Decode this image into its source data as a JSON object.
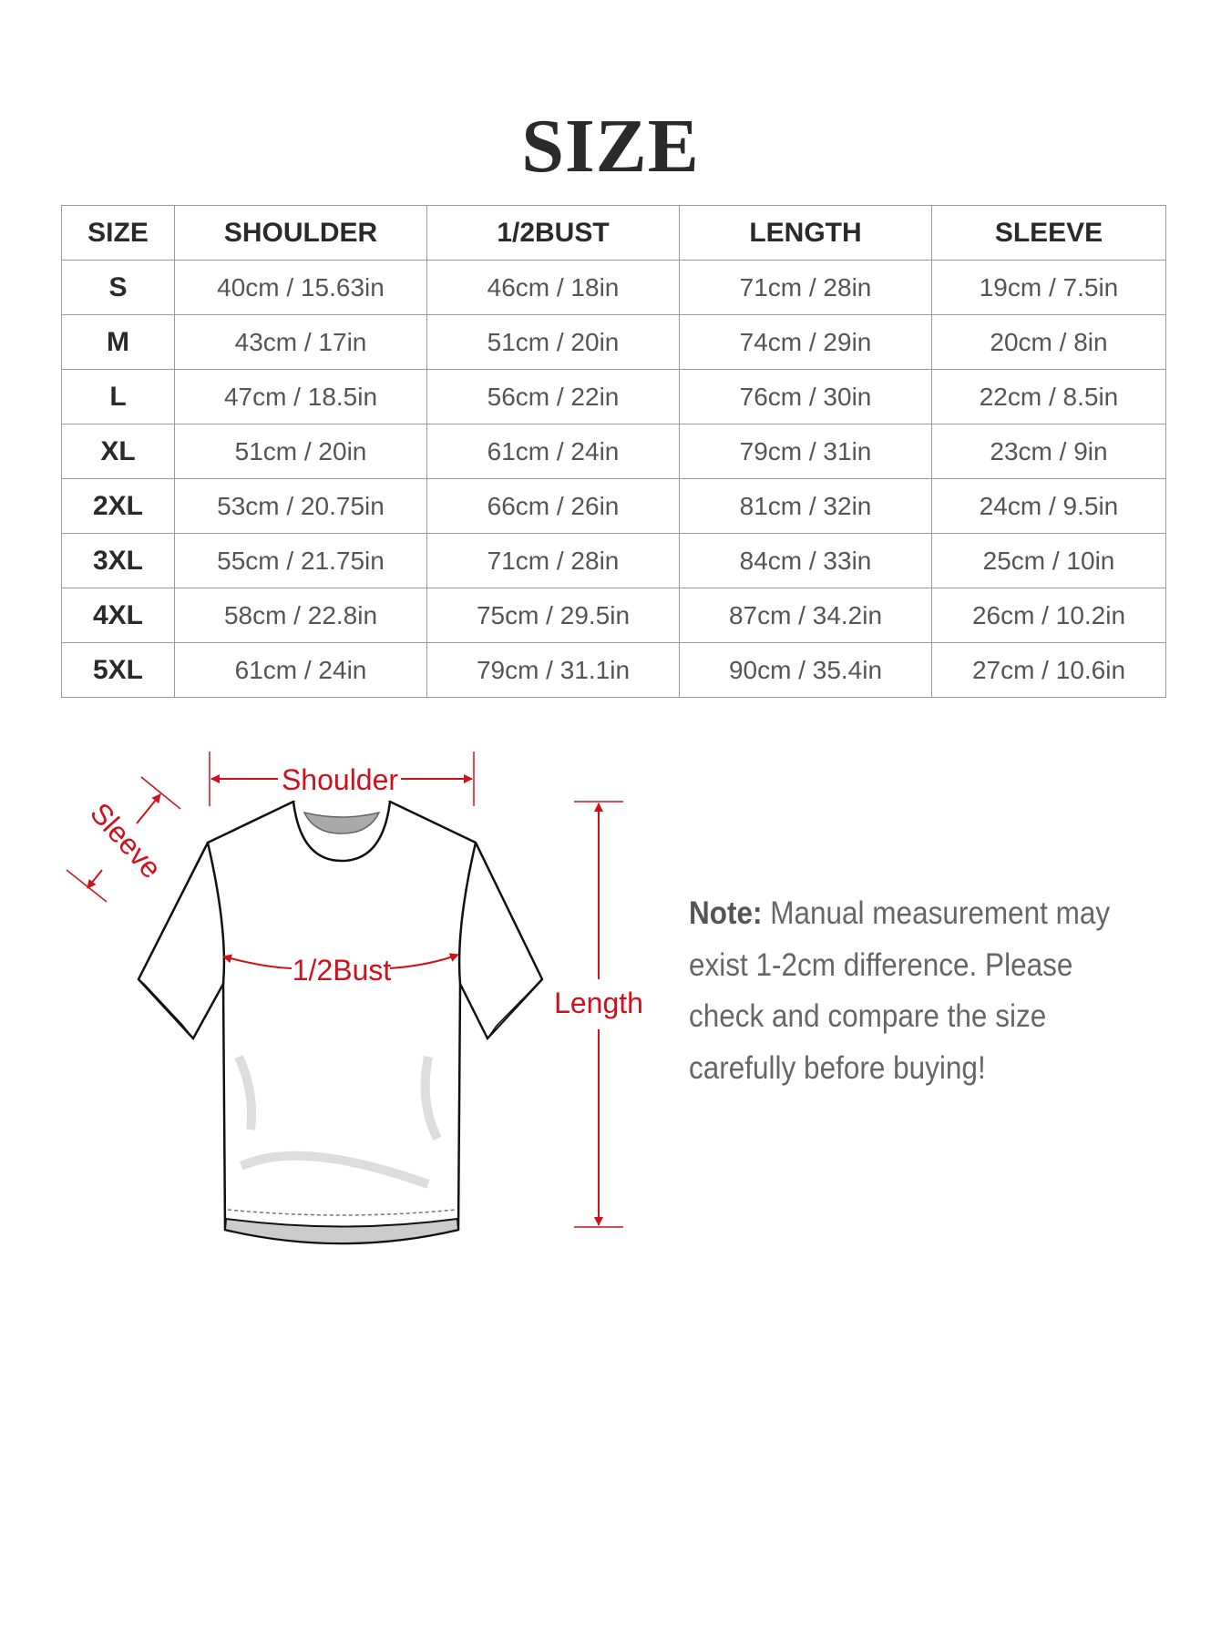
{
  "title": "SIZE",
  "table": {
    "headers": [
      "SIZE",
      "SHOULDER",
      "1/2BUST",
      "LENGTH",
      "SLEEVE"
    ],
    "rows": [
      [
        "S",
        "40cm / 15.63in",
        "46cm / 18in",
        "71cm / 28in",
        "19cm / 7.5in"
      ],
      [
        "M",
        "43cm / 17in",
        "51cm / 20in",
        "74cm / 29in",
        "20cm / 8in"
      ],
      [
        "L",
        "47cm / 18.5in",
        "56cm / 22in",
        "76cm / 30in",
        "22cm / 8.5in"
      ],
      [
        "XL",
        "51cm / 20in",
        "61cm / 24in",
        "79cm / 31in",
        "23cm / 9in"
      ],
      [
        "2XL",
        "53cm / 20.75in",
        "66cm / 26in",
        "81cm / 32in",
        "24cm / 9.5in"
      ],
      [
        "3XL",
        "55cm / 21.75in",
        "71cm / 28in",
        "84cm / 33in",
        "25cm / 10in"
      ],
      [
        "4XL",
        "58cm / 22.8in",
        "75cm / 29.5in",
        "87cm / 34.2in",
        "26cm / 10.2in"
      ],
      [
        "5XL",
        "61cm / 24in",
        "79cm / 31.1in",
        "90cm / 35.4in",
        "27cm / 10.6in"
      ]
    ]
  },
  "diagram": {
    "labels": {
      "shoulder": "Shoulder",
      "sleeve": "Sleeve",
      "bust": "1/2Bust",
      "length": "Length"
    },
    "accent_color": "#d0101a",
    "icon": "tshirt-icon"
  },
  "note": {
    "label": "Note:",
    "text": " Manual measurement may exist 1-2cm difference. Please check and compare the size carefully before buying!"
  }
}
